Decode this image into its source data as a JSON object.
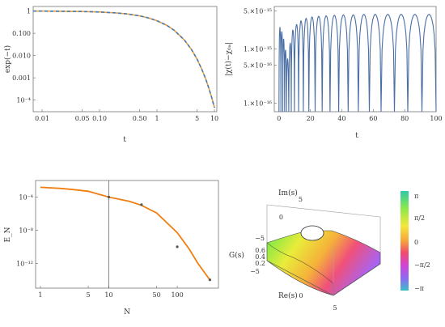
{
  "chart_data": [
    {
      "type": "line",
      "panel": "top-left",
      "title": "",
      "xlabel": "t",
      "ylabel": "exp(−t)",
      "x_scale": "log",
      "y_scale": "log",
      "xlim": [
        0.007,
        11
      ],
      "ylim": [
        3e-05,
        1.6
      ],
      "x_ticks": [
        {
          "v": 0.01,
          "label": "0.01"
        },
        {
          "v": 0.05,
          "label": "0.05"
        },
        {
          "v": 0.1,
          "label": "0.10"
        },
        {
          "v": 0.5,
          "label": "0.50"
        },
        {
          "v": 1,
          "label": "1"
        },
        {
          "v": 5,
          "label": "5"
        },
        {
          "v": 10,
          "label": "10"
        }
      ],
      "y_ticks": [
        {
          "v": 1,
          "label": "1"
        },
        {
          "v": 0.1,
          "label": "0.100"
        },
        {
          "v": 0.01,
          "label": "0.010"
        },
        {
          "v": 0.001,
          "label": "0.001"
        },
        {
          "v": 0.0001,
          "label": "10⁻⁴"
        }
      ],
      "series": [
        {
          "color": "#e8a33d",
          "style": "solid",
          "x": [
            0.007,
            0.01,
            0.02,
            0.05,
            0.1,
            0.2,
            0.3,
            0.5,
            0.7,
            1,
            1.5,
            2,
            3,
            4,
            5,
            6,
            7,
            8,
            9,
            10
          ],
          "y": [
            0.993,
            0.99,
            0.98,
            0.951,
            0.905,
            0.819,
            0.741,
            0.607,
            0.497,
            0.368,
            0.223,
            0.135,
            0.0498,
            0.0183,
            0.00674,
            0.00248,
            0.000912,
            0.000335,
            0.000123,
            4.54e-05
          ]
        },
        {
          "color": "#4a7ab5",
          "style": "dashed",
          "x": [
            0.007,
            0.01,
            0.02,
            0.05,
            0.1,
            0.2,
            0.3,
            0.5,
            0.7,
            1,
            1.5,
            2,
            3,
            4,
            5,
            6,
            7,
            8,
            9,
            10
          ],
          "y": [
            0.993,
            0.99,
            0.98,
            0.951,
            0.905,
            0.819,
            0.741,
            0.607,
            0.497,
            0.368,
            0.223,
            0.135,
            0.0498,
            0.0183,
            0.00674,
            0.00248,
            0.000912,
            0.000335,
            0.000123,
            4.54e-05
          ]
        }
      ]
    },
    {
      "type": "line",
      "panel": "top-right",
      "title": "",
      "xlabel": "t",
      "ylabel": "|χ(t)−χ₀ₐ|",
      "x_scale": "linear",
      "y_scale": "log",
      "xlim": [
        -3,
        100
      ],
      "ylim": [
        7e-17,
        6e-15
      ],
      "x_ticks": [
        {
          "v": 0,
          "label": "0"
        },
        {
          "v": 20,
          "label": "20"
        },
        {
          "v": 40,
          "label": "40"
        },
        {
          "v": 60,
          "label": "60"
        },
        {
          "v": 80,
          "label": "80"
        },
        {
          "v": 100,
          "label": "100"
        }
      ],
      "y_ticks": [
        {
          "v": 5e-15,
          "label": "5.×10⁻¹⁵"
        },
        {
          "v": 1e-15,
          "label": "1.×10⁻¹⁵"
        },
        {
          "v": 5e-16,
          "label": "5.×10⁻¹⁶"
        },
        {
          "v": 1e-16,
          "label": "1.×10⁻¹⁶"
        }
      ],
      "series": [
        {
          "color": "#4a6fa5",
          "style": "solid",
          "description_values": "oscillating envelope with zeros",
          "x": [
            0,
            1,
            2,
            3,
            4,
            5,
            6,
            7,
            8,
            10,
            12,
            15,
            18,
            22,
            27,
            33,
            40,
            47,
            55,
            63,
            72,
            82,
            92,
            100
          ],
          "y": [
            2.5e-15,
            2.4e-15,
            2e-15,
            1.5e-15,
            1e-15,
            7e-16,
            6e-16,
            1.2e-15,
            2e-15,
            2.5e-15,
            3e-15,
            3.4e-15,
            3.7e-15,
            3.9e-15,
            4e-15,
            4.1e-15,
            4.2e-15,
            4.2e-15,
            4.3e-15,
            4.3e-15,
            4.3e-15,
            4.3e-15,
            4.3e-15,
            4.3e-15
          ]
        }
      ]
    },
    {
      "type": "scatter",
      "panel": "bottom-left",
      "title": "",
      "xlabel": "N",
      "ylabel": "E_N",
      "x_scale": "log",
      "y_scale": "log",
      "xlim": [
        0.85,
        400
      ],
      "ylim": [
        1e-15,
        0.01
      ],
      "x_ticks": [
        {
          "v": 1,
          "label": "1"
        },
        {
          "v": 5,
          "label": "5"
        },
        {
          "v": 10,
          "label": "10"
        },
        {
          "v": 50,
          "label": "50"
        },
        {
          "v": 100,
          "label": "100"
        }
      ],
      "y_ticks": [
        {
          "v": 0.0001,
          "label": "10⁻⁴"
        },
        {
          "v": 1e-08,
          "label": "10⁻⁸"
        },
        {
          "v": 1e-12,
          "label": "10⁻¹²"
        }
      ],
      "vertical_line_x": 10,
      "points": {
        "color": "#555555",
        "x": [
          10,
          30,
          100,
          300
        ],
        "y": [
          0.0001,
          1.2e-05,
          1e-10,
          1e-14
        ]
      },
      "fit_curve": {
        "color": "#f07f10",
        "x": [
          1,
          2,
          3,
          5,
          10,
          20,
          30,
          50,
          100,
          150,
          200,
          300
        ],
        "y": [
          0.0015,
          0.0011,
          0.0008,
          0.0005,
          0.0001,
          3e-05,
          1e-05,
          1.2e-06,
          5e-09,
          5e-11,
          1e-12,
          1e-14
        ]
      }
    },
    {
      "type": "surface",
      "panel": "bottom-right",
      "title": "",
      "xlabel": "Re(s)",
      "ylabel": "Im(s)",
      "zlabel": "G(s)",
      "x_ticks": [
        "−5",
        "0",
        "5"
      ],
      "y_ticks": [
        "5",
        "0",
        "−5"
      ],
      "z_ticks": [
        "0.6",
        "0.4",
        "0.2"
      ],
      "colorbar": {
        "labels": [
          "π",
          "π/2",
          "0",
          "−π/2",
          "−π"
        ],
        "colors": [
          "#2ec9a8",
          "#8fe94a",
          "#f3e83a",
          "#f6a43a",
          "#f24a6e",
          "#cf44d9",
          "#8a6cf2",
          "#3bc0c9"
        ]
      }
    }
  ]
}
